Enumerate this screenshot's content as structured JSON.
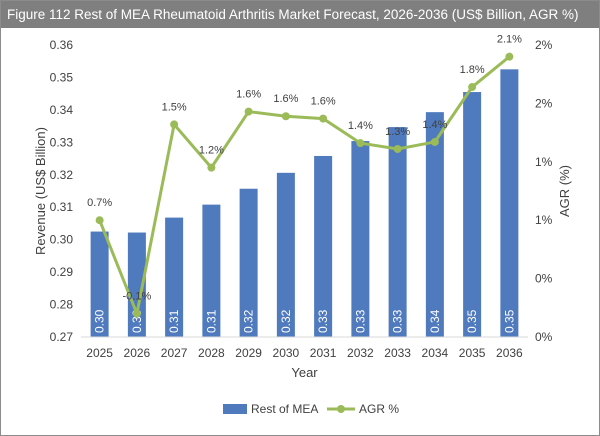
{
  "title": "Figure 112 Rest of MEA Rheumatoid Arthritis Market Forecast, 2026-2036 (US$ Billion, AGR %)",
  "colors": {
    "bar": "#4f7abd",
    "line": "#9bbb59",
    "title_bg": "#7f7f7f"
  },
  "chart_data": {
    "type": "bar+line",
    "categories": [
      "2025",
      "2026",
      "2027",
      "2028",
      "2029",
      "2030",
      "2031",
      "2032",
      "2033",
      "2034",
      "2035",
      "2036"
    ],
    "xlabel": "Year",
    "ylabel": "Revenue (US$ Billion)",
    "y2label": "AGR (%)",
    "ylim": [
      0.27,
      0.36
    ],
    "yticks": [
      "0.27",
      "0.28",
      "0.29",
      "0.30",
      "0.31",
      "0.32",
      "0.33",
      "0.34",
      "0.35",
      "0.36"
    ],
    "y2lim": [
      -0.3,
      2.2
    ],
    "y2ticks": [
      "0%",
      "0%",
      "1%",
      "1%",
      "2%",
      "2%"
    ],
    "grid": false,
    "legend": "bottom",
    "series": [
      {
        "name": "Rest of MEA",
        "type": "bar",
        "values": [
          0.3025,
          0.3022,
          0.3068,
          0.3108,
          0.3157,
          0.3206,
          0.3258,
          0.3304,
          0.3347,
          0.3393,
          0.3455,
          0.3525
        ],
        "labels": [
          "0.30",
          "0.30",
          "0.31",
          "0.31",
          "0.32",
          "0.32",
          "0.33",
          "0.33",
          "0.33",
          "0.34",
          "0.35",
          "0.35"
        ]
      },
      {
        "name": "AGR %",
        "type": "line",
        "values": [
          0.7,
          -0.1,
          1.52,
          1.15,
          1.63,
          1.59,
          1.57,
          1.36,
          1.31,
          1.37,
          1.84,
          2.1
        ],
        "labels": [
          "0.7%",
          "-0.1%",
          "1.5%",
          "1.2%",
          "1.6%",
          "1.6%",
          "1.6%",
          "1.4%",
          "1.3%",
          "1.4%",
          "1.8%",
          "2.1%"
        ]
      }
    ]
  }
}
